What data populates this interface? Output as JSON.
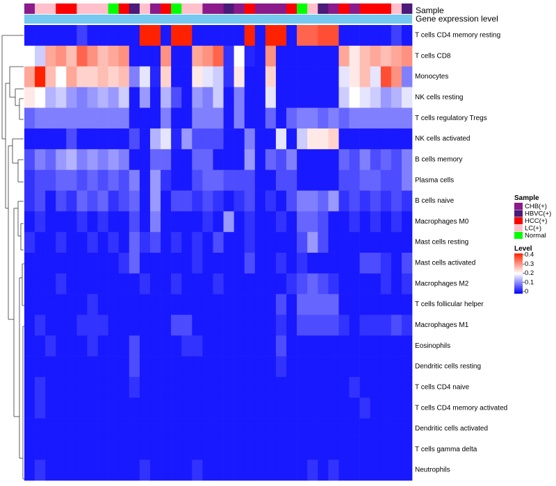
{
  "chart_data": {
    "type": "heatmap",
    "annotation_titles": [
      "Sample",
      "Gene expression level"
    ],
    "sample_legend_title": "Sample",
    "sample_groups": [
      {
        "name": "CHB(+)",
        "color": "#8B1A8B"
      },
      {
        "name": "HBVC(+)",
        "color": "#4B1A7A"
      },
      {
        "name": "HCC(+)",
        "color": "#FF0000"
      },
      {
        "name": "LC(+)",
        "color": "#FFC0CB"
      },
      {
        "name": "Normal",
        "color": "#00FF00"
      }
    ],
    "sample_annotation": [
      "CHB(+)",
      "LC(+)",
      "LC(+)",
      "HCC(+)",
      "HCC(+)",
      "LC(+)",
      "LC(+)",
      "LC(+)",
      "Normal",
      "HCC(+)",
      "HBVC(+)",
      "LC(+)",
      "CHB(+)",
      "HCC(+)",
      "Normal",
      "LC(+)",
      "LC(+)",
      "CHB(+)",
      "CHB(+)",
      "HBVC(+)",
      "CHB(+)",
      "HCC(+)",
      "CHB(+)",
      "CHB(+)",
      "CHB(+)",
      "HCC(+)",
      "Normal",
      "LC(+)",
      "HBVC(+)",
      "CHB(+)",
      "HCC(+)",
      "CHB(+)",
      "HCC(+)",
      "HCC(+)",
      "HCC(+)",
      "LC(+)",
      "HBVC(+)"
    ],
    "gene_expression_bar_color": "#75C8F0",
    "level_legend_title": "Level",
    "level_ticks": [
      "0.4",
      "0.3",
      "0.2",
      "0.1",
      "0"
    ],
    "value_range": [
      0,
      0.4
    ],
    "color_scale": [
      "#0000FF",
      "#FFFFFF",
      "#FF2200"
    ],
    "rows": [
      "T cells CD4 memory resting",
      "T cells CD8",
      "Monocytes",
      "NK cells resting",
      "T cells regulatory  Tregs",
      "NK cells activated",
      "B cells memory",
      "Plasma cells",
      "B cells naive",
      "Macrophages M0",
      "Mast cells resting",
      "Mast cells activated",
      "Macrophages M2",
      "T cells follicular helper",
      "Macrophages M1",
      "Eosinophils",
      "Dendritic cells resting",
      "T cells CD4 naive",
      "T cells CD4 memory activated",
      "Dendritic cells activated",
      "T cells gamma delta",
      "Neutrophils"
    ],
    "values": [
      [
        0.02,
        0.02,
        0.02,
        0.02,
        0.02,
        0.05,
        0.02,
        0.02,
        0.02,
        0.02,
        0.02,
        0.4,
        0.4,
        0.02,
        0.4,
        0.4,
        0.02,
        0.02,
        0.02,
        0.02,
        0.02,
        0.4,
        0.02,
        0.4,
        0.4,
        0.02,
        0.34,
        0.34,
        0.36,
        0.36,
        0.02,
        0.02,
        0.02,
        0.02,
        0.02,
        0.05,
        0.02
      ],
      [
        0.2,
        0.16,
        0.28,
        0.3,
        0.26,
        0.34,
        0.3,
        0.26,
        0.28,
        0.3,
        0.02,
        0.02,
        0.02,
        0.3,
        0.02,
        0.02,
        0.28,
        0.3,
        0.34,
        0.04,
        0.2,
        0.03,
        0.02,
        0.3,
        0.02,
        0.02,
        0.02,
        0.02,
        0.02,
        0.02,
        0.28,
        0.22,
        0.26,
        0.28,
        0.26,
        0.28,
        0.3
      ],
      [
        0.28,
        0.4,
        0.26,
        0.2,
        0.28,
        0.24,
        0.24,
        0.26,
        0.24,
        0.26,
        0.1,
        0.18,
        0.03,
        0.24,
        0.02,
        0.02,
        0.22,
        0.18,
        0.16,
        0.04,
        0.22,
        0.02,
        0.02,
        0.24,
        0.02,
        0.02,
        0.02,
        0.02,
        0.02,
        0.02,
        0.18,
        0.22,
        0.26,
        0.18,
        0.36,
        0.3,
        0.1
      ],
      [
        0.22,
        0.2,
        0.14,
        0.16,
        0.12,
        0.1,
        0.12,
        0.14,
        0.12,
        0.16,
        0.02,
        0.12,
        0.02,
        0.14,
        0.06,
        0.02,
        0.12,
        0.1,
        0.16,
        0.02,
        0.1,
        0.02,
        0.02,
        0.18,
        0.02,
        0.02,
        0.02,
        0.02,
        0.02,
        0.02,
        0.16,
        0.2,
        0.18,
        0.16,
        0.12,
        0.14,
        0.18
      ],
      [
        0.08,
        0.1,
        0.1,
        0.1,
        0.1,
        0.1,
        0.1,
        0.1,
        0.1,
        0.1,
        0.02,
        0.02,
        0.02,
        0.1,
        0.02,
        0.02,
        0.1,
        0.1,
        0.1,
        0.02,
        0.1,
        0.02,
        0.02,
        0.08,
        0.02,
        0.08,
        0.1,
        0.1,
        0.08,
        0.1,
        0.08,
        0.1,
        0.1,
        0.1,
        0.1,
        0.1,
        0.1
      ],
      [
        0.02,
        0.02,
        0.02,
        0.02,
        0.06,
        0.02,
        0.02,
        0.02,
        0.02,
        0.02,
        0.06,
        0.02,
        0.14,
        0.18,
        0.03,
        0.12,
        0.06,
        0.06,
        0.06,
        0.02,
        0.02,
        0.1,
        0.02,
        0.02,
        0.18,
        0.02,
        0.16,
        0.22,
        0.22,
        0.24,
        0.02,
        0.02,
        0.02,
        0.02,
        0.02,
        0.02,
        0.02
      ],
      [
        0.06,
        0.1,
        0.08,
        0.12,
        0.14,
        0.1,
        0.12,
        0.1,
        0.12,
        0.1,
        0.02,
        0.02,
        0.08,
        0.08,
        0.02,
        0.02,
        0.08,
        0.08,
        0.02,
        0.02,
        0.02,
        0.12,
        0.02,
        0.08,
        0.06,
        0.1,
        0.02,
        0.02,
        0.02,
        0.02,
        0.08,
        0.06,
        0.1,
        0.06,
        0.08,
        0.06,
        0.1
      ],
      [
        0.04,
        0.06,
        0.06,
        0.08,
        0.08,
        0.06,
        0.08,
        0.06,
        0.08,
        0.06,
        0.1,
        0.02,
        0.12,
        0.04,
        0.02,
        0.02,
        0.06,
        0.08,
        0.08,
        0.06,
        0.06,
        0.06,
        0.02,
        0.02,
        0.06,
        0.06,
        0.02,
        0.02,
        0.02,
        0.02,
        0.06,
        0.06,
        0.08,
        0.08,
        0.06,
        0.06,
        0.1
      ],
      [
        0.04,
        0.06,
        0.02,
        0.06,
        0.04,
        0.08,
        0.06,
        0.08,
        0.04,
        0.06,
        0.08,
        0.02,
        0.12,
        0.02,
        0.06,
        0.06,
        0.04,
        0.06,
        0.04,
        0.02,
        0.04,
        0.06,
        0.02,
        0.04,
        0.02,
        0.06,
        0.1,
        0.1,
        0.08,
        0.12,
        0.04,
        0.06,
        0.04,
        0.06,
        0.04,
        0.06,
        0.04
      ],
      [
        0.02,
        0.04,
        0.02,
        0.02,
        0.02,
        0.04,
        0.02,
        0.04,
        0.02,
        0.02,
        0.06,
        0.02,
        0.1,
        0.02,
        0.02,
        0.02,
        0.02,
        0.04,
        0.02,
        0.12,
        0.02,
        0.04,
        0.02,
        0.02,
        0.04,
        0.02,
        0.08,
        0.08,
        0.06,
        0.02,
        0.02,
        0.04,
        0.02,
        0.04,
        0.02,
        0.04,
        0.02
      ],
      [
        0.04,
        0.02,
        0.02,
        0.04,
        0.02,
        0.02,
        0.04,
        0.02,
        0.04,
        0.02,
        0.08,
        0.04,
        0.06,
        0.02,
        0.04,
        0.02,
        0.04,
        0.02,
        0.06,
        0.02,
        0.02,
        0.04,
        0.02,
        0.02,
        0.02,
        0.02,
        0.06,
        0.12,
        0.06,
        0.02,
        0.02,
        0.02,
        0.02,
        0.02,
        0.02,
        0.02,
        0.02
      ],
      [
        0.02,
        0.02,
        0.02,
        0.02,
        0.02,
        0.02,
        0.02,
        0.02,
        0.02,
        0.04,
        0.08,
        0.02,
        0.02,
        0.02,
        0.02,
        0.02,
        0.04,
        0.02,
        0.02,
        0.02,
        0.02,
        0.06,
        0.02,
        0.02,
        0.04,
        0.02,
        0.04,
        0.02,
        0.02,
        0.02,
        0.02,
        0.02,
        0.06,
        0.06,
        0.04,
        0.02,
        0.06
      ],
      [
        0.02,
        0.02,
        0.02,
        0.04,
        0.02,
        0.02,
        0.02,
        0.02,
        0.02,
        0.02,
        0.02,
        0.04,
        0.02,
        0.02,
        0.04,
        0.02,
        0.02,
        0.02,
        0.04,
        0.02,
        0.02,
        0.02,
        0.02,
        0.02,
        0.02,
        0.04,
        0.06,
        0.08,
        0.06,
        0.04,
        0.02,
        0.02,
        0.02,
        0.02,
        0.04,
        0.02,
        0.04
      ],
      [
        0.02,
        0.02,
        0.02,
        0.02,
        0.02,
        0.02,
        0.04,
        0.02,
        0.02,
        0.02,
        0.02,
        0.02,
        0.02,
        0.02,
        0.02,
        0.02,
        0.02,
        0.02,
        0.02,
        0.02,
        0.02,
        0.02,
        0.02,
        0.02,
        0.06,
        0.02,
        0.08,
        0.08,
        0.08,
        0.08,
        0.02,
        0.02,
        0.02,
        0.02,
        0.02,
        0.02,
        0.02
      ],
      [
        0.02,
        0.04,
        0.02,
        0.02,
        0.02,
        0.04,
        0.04,
        0.04,
        0.02,
        0.02,
        0.02,
        0.02,
        0.02,
        0.02,
        0.06,
        0.06,
        0.02,
        0.02,
        0.02,
        0.02,
        0.02,
        0.02,
        0.02,
        0.02,
        0.04,
        0.02,
        0.06,
        0.06,
        0.06,
        0.06,
        0.04,
        0.02,
        0.04,
        0.04,
        0.04,
        0.06,
        0.04
      ],
      [
        0.02,
        0.02,
        0.04,
        0.02,
        0.02,
        0.02,
        0.04,
        0.02,
        0.02,
        0.02,
        0.06,
        0.02,
        0.02,
        0.02,
        0.02,
        0.04,
        0.04,
        0.02,
        0.02,
        0.02,
        0.02,
        0.02,
        0.02,
        0.02,
        0.06,
        0.02,
        0.02,
        0.02,
        0.02,
        0.02,
        0.02,
        0.02,
        0.02,
        0.02,
        0.02,
        0.02,
        0.02
      ],
      [
        0.02,
        0.02,
        0.02,
        0.02,
        0.02,
        0.02,
        0.02,
        0.02,
        0.02,
        0.02,
        0.06,
        0.02,
        0.02,
        0.02,
        0.02,
        0.02,
        0.02,
        0.02,
        0.02,
        0.02,
        0.02,
        0.02,
        0.02,
        0.02,
        0.04,
        0.02,
        0.02,
        0.02,
        0.02,
        0.02,
        0.02,
        0.02,
        0.02,
        0.02,
        0.02,
        0.02,
        0.02
      ],
      [
        0.02,
        0.04,
        0.02,
        0.02,
        0.02,
        0.02,
        0.02,
        0.02,
        0.02,
        0.02,
        0.04,
        0.02,
        0.02,
        0.02,
        0.02,
        0.02,
        0.02,
        0.02,
        0.02,
        0.02,
        0.02,
        0.02,
        0.02,
        0.02,
        0.02,
        0.02,
        0.02,
        0.02,
        0.02,
        0.02,
        0.02,
        0.04,
        0.02,
        0.02,
        0.02,
        0.02,
        0.02
      ],
      [
        0.02,
        0.04,
        0.02,
        0.02,
        0.02,
        0.02,
        0.02,
        0.02,
        0.02,
        0.02,
        0.02,
        0.02,
        0.02,
        0.02,
        0.02,
        0.02,
        0.02,
        0.02,
        0.02,
        0.02,
        0.02,
        0.02,
        0.02,
        0.02,
        0.02,
        0.02,
        0.02,
        0.02,
        0.02,
        0.02,
        0.02,
        0.02,
        0.04,
        0.02,
        0.02,
        0.02,
        0.02
      ],
      [
        0.02,
        0.02,
        0.02,
        0.02,
        0.02,
        0.02,
        0.02,
        0.02,
        0.02,
        0.02,
        0.02,
        0.02,
        0.02,
        0.02,
        0.02,
        0.02,
        0.02,
        0.02,
        0.02,
        0.02,
        0.02,
        0.02,
        0.02,
        0.02,
        0.02,
        0.02,
        0.02,
        0.02,
        0.02,
        0.02,
        0.02,
        0.02,
        0.02,
        0.02,
        0.02,
        0.02,
        0.02
      ],
      [
        0.02,
        0.02,
        0.02,
        0.02,
        0.02,
        0.02,
        0.02,
        0.02,
        0.02,
        0.02,
        0.02,
        0.02,
        0.02,
        0.02,
        0.02,
        0.02,
        0.02,
        0.02,
        0.02,
        0.02,
        0.02,
        0.02,
        0.02,
        0.02,
        0.02,
        0.02,
        0.02,
        0.02,
        0.02,
        0.02,
        0.02,
        0.02,
        0.02,
        0.02,
        0.02,
        0.02,
        0.02
      ],
      [
        0.02,
        0.04,
        0.02,
        0.02,
        0.02,
        0.02,
        0.02,
        0.02,
        0.02,
        0.02,
        0.02,
        0.04,
        0.02,
        0.02,
        0.02,
        0.02,
        0.04,
        0.02,
        0.02,
        0.02,
        0.02,
        0.02,
        0.02,
        0.02,
        0.02,
        0.02,
        0.02,
        0.04,
        0.02,
        0.04,
        0.02,
        0.02,
        0.02,
        0.02,
        0.02,
        0.02,
        0.02
      ]
    ]
  }
}
